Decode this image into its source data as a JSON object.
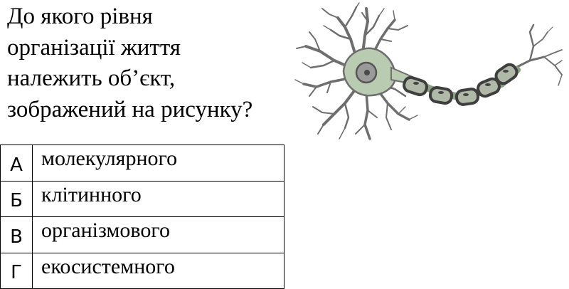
{
  "question": {
    "lines": [
      "До якого рівня",
      "організації життя",
      "належить об’єкт,",
      "зображений на рисунку?"
    ]
  },
  "answers": [
    {
      "letter": "А",
      "text": "молекулярного"
    },
    {
      "letter": "Б",
      "text": "клітинного"
    },
    {
      "letter": "В",
      "text": "організмового"
    },
    {
      "letter": "Г",
      "text": "екосистемного"
    }
  ],
  "colors": {
    "text": "#000000",
    "cell_body": "#b9cbb0",
    "dendrite": "#6e6e6e",
    "myelin": "#5a5a5a",
    "nucleus": "#8a8a8a"
  },
  "icons": {
    "illustration": "neuron-illustration-icon"
  }
}
